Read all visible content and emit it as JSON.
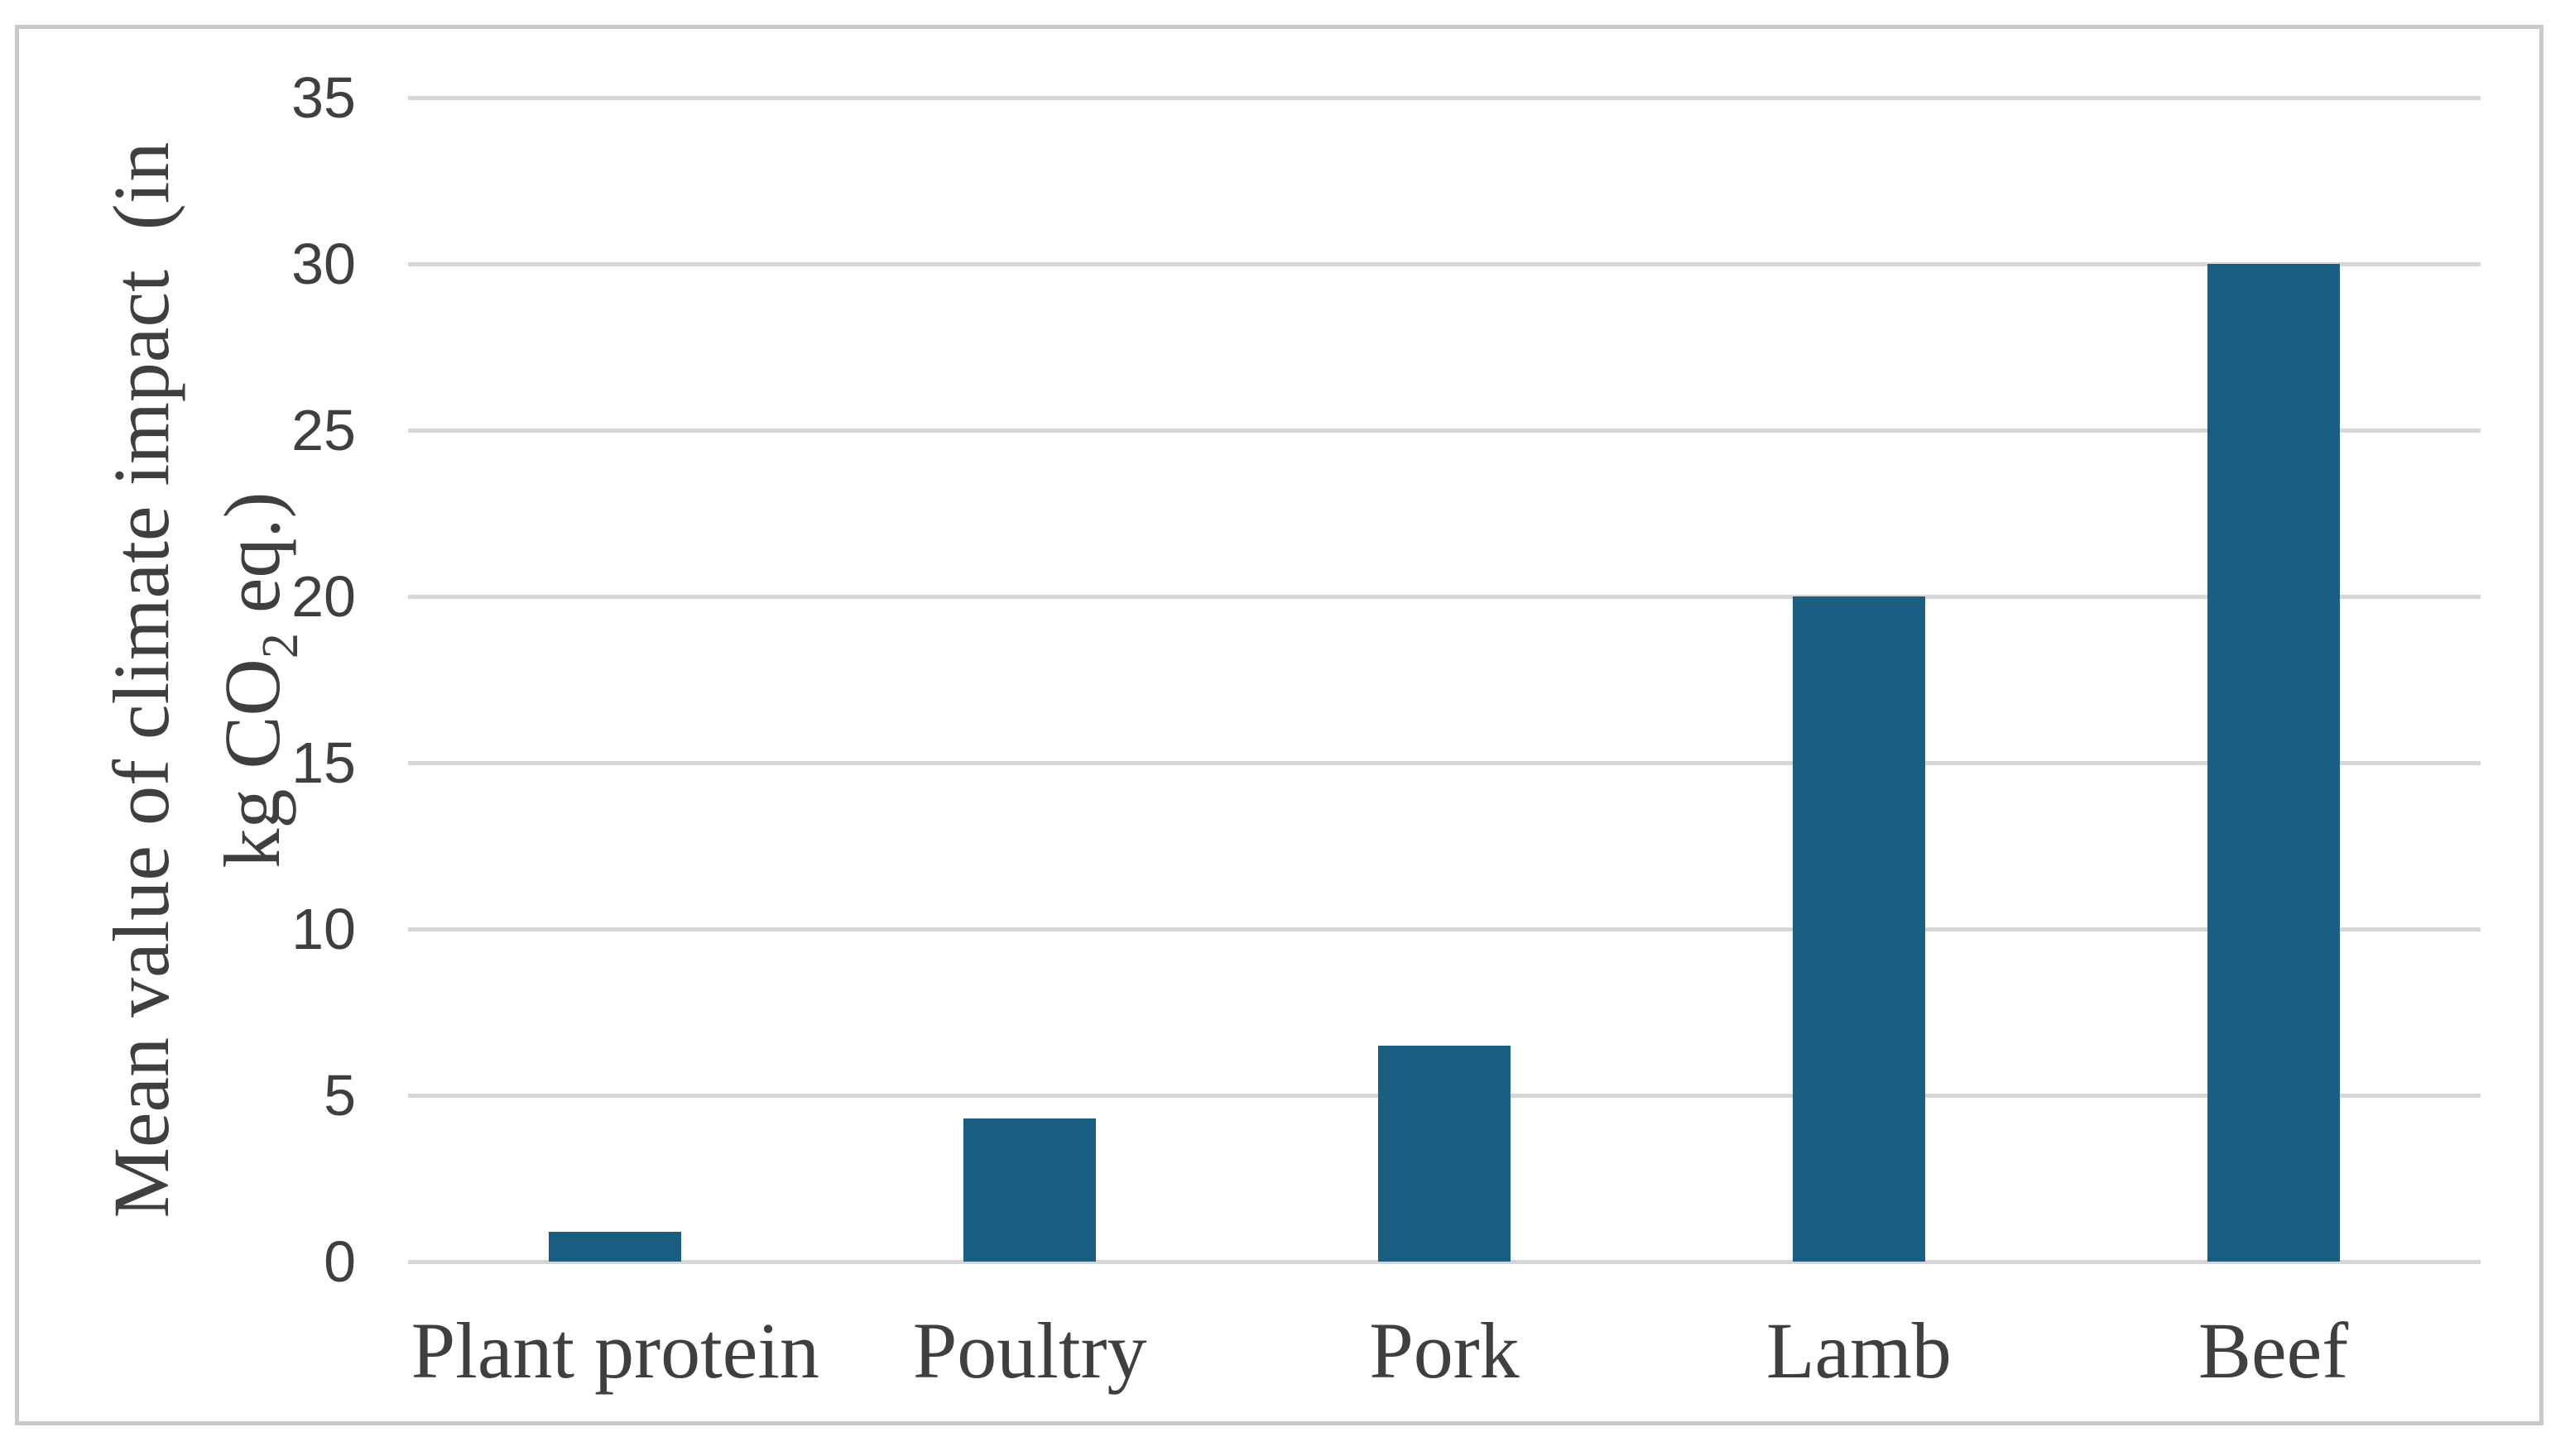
{
  "chart_data": {
    "type": "bar",
    "categories": [
      "Plant protein",
      "Poultry",
      "Pork",
      "Lamb",
      "Beef"
    ],
    "values": [
      0.9,
      4.3,
      6.5,
      20,
      30
    ],
    "title": "",
    "xlabel": "",
    "ylabel": "Mean value of climate impact (in kg CO2 eq.)",
    "ylabel_line1": "Mean value of climate impact  (in",
    "ylabel_line2_prefix": "kg CO",
    "ylabel_line2_sub": "2",
    "ylabel_line2_suffix": " eq.)",
    "yticks": [
      0,
      5,
      10,
      15,
      20,
      25,
      30,
      35
    ],
    "ylim": [
      0,
      35
    ],
    "grid": "horizontal gridlines only, no axis lines",
    "legend": "none",
    "colors": {
      "bar": "#1A5F82",
      "gridline": "#D6D6D6",
      "text": "#3F3F3F",
      "frame_border": "#C9C9C9",
      "background": "#FFFFFF"
    }
  }
}
